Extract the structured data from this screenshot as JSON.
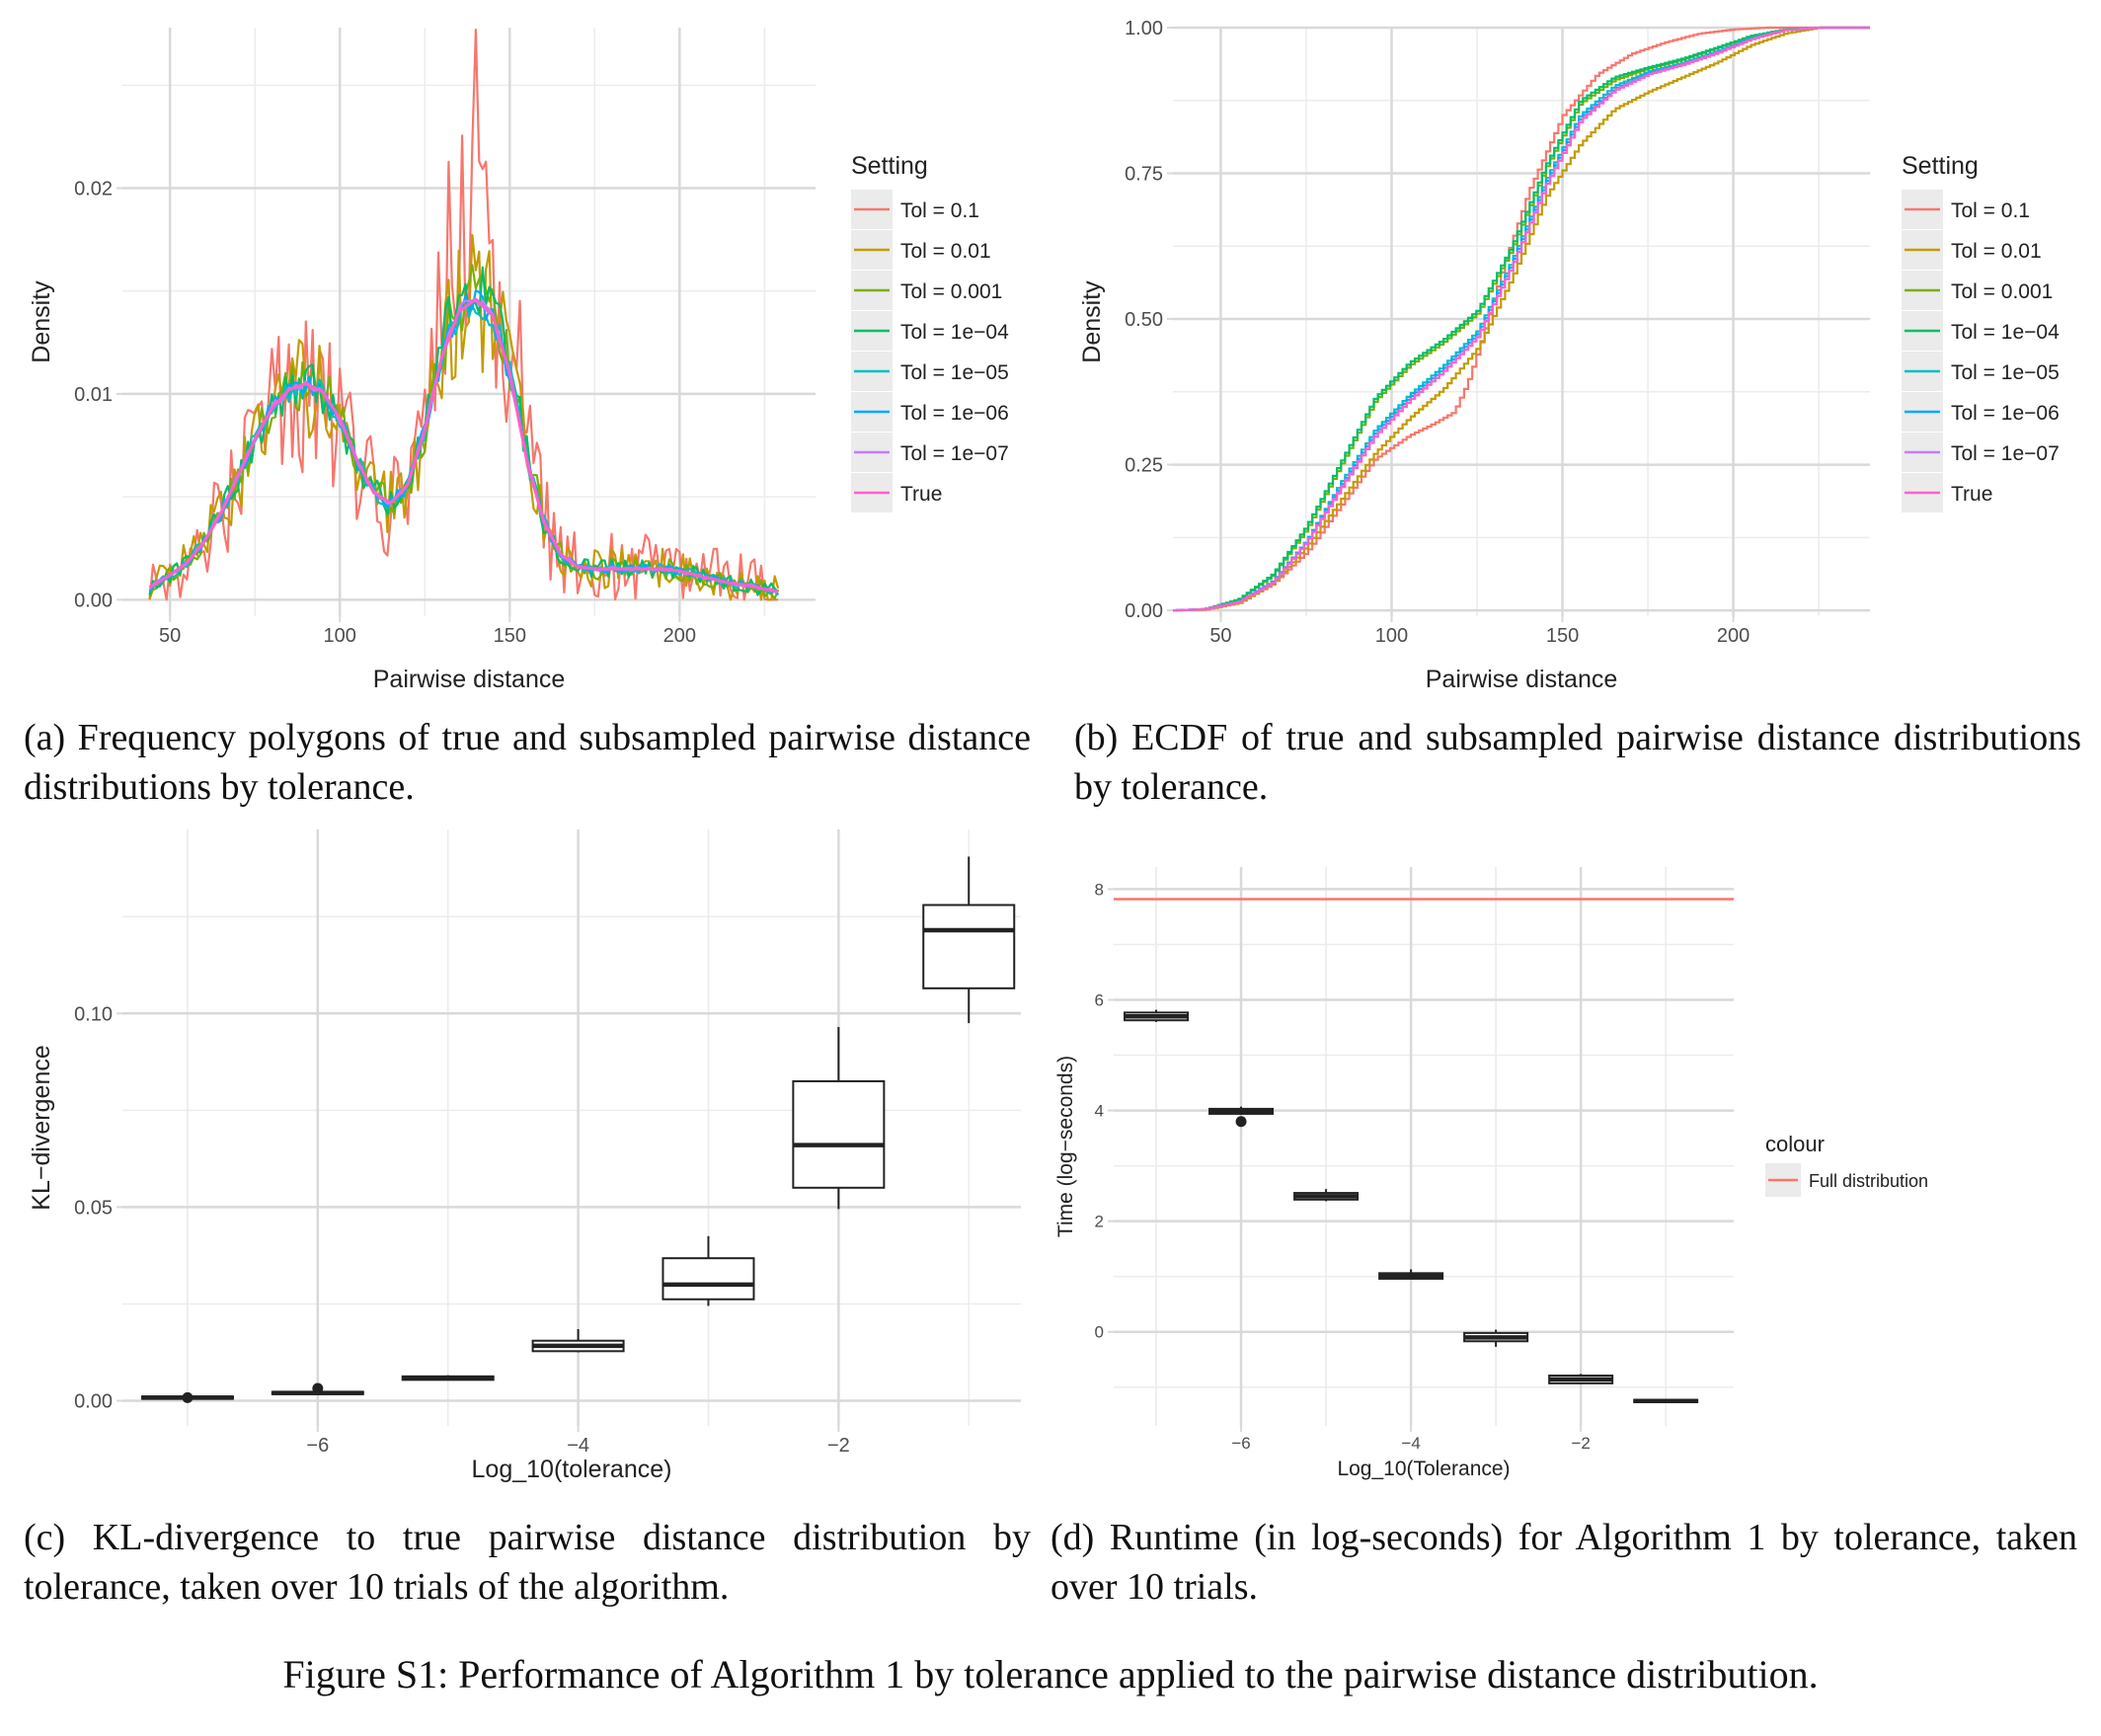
{
  "colors": {
    "panel_bg": "#ffffff",
    "grid_major": "#d9d9d9",
    "grid_minor": "#ececec",
    "legend_key_bg": "#ebebeb",
    "text": "#222222",
    "tick_text": "#4d4d4d",
    "box": "#222222"
  },
  "captions": {
    "a": "(a) Frequency polygons of true and subsampled pairwise distance distributions by tolerance.",
    "b": "(b) ECDF of true and subsampled pairwise distance distributions by tolerance.",
    "c": "(c) KL-divergence to true pairwise distance distribution by tolerance, taken over 10 trials of the algorithm.",
    "d": "(d) Runtime (in log-seconds) for Algorithm 1 by tolerance, taken over 10 trials.",
    "figure": "Figure S1: Performance of Algorithm 1 by tolerance applied to the pairwise distance distribution."
  },
  "chart_data": [
    {
      "id": "a",
      "type": "line",
      "title": "",
      "xlabel": "Pairwise distance",
      "ylabel": "Density",
      "xlim": [
        36,
        240
      ],
      "ylim": [
        -0.0008,
        0.0278
      ],
      "xticks": [
        50,
        100,
        150,
        200
      ],
      "xtick_labels": [
        "50",
        "100",
        "150",
        "200"
      ],
      "yticks": [
        0.0,
        0.01,
        0.02
      ],
      "ytick_labels": [
        "0.00",
        "0.01",
        "0.02"
      ],
      "grid": true,
      "legend_title": "Setting",
      "legend_position": "right",
      "series": [
        {
          "name": "Tol =  0.1",
          "color": "#F8766D",
          "noise": 0.0036,
          "amp": 1.22,
          "seed": 11
        },
        {
          "name": "Tol =  0.01",
          "color": "#C49A00",
          "noise": 0.0021,
          "amp": 1.0,
          "seed": 23
        },
        {
          "name": "Tol =  0.001",
          "color": "#7CAE00",
          "noise": 0.0011,
          "amp": 1.04,
          "seed": 37
        },
        {
          "name": "Tol =  1e−04",
          "color": "#00BE67",
          "noise": 0.0009,
          "amp": 1.06,
          "seed": 41
        },
        {
          "name": "Tol =  1e−05",
          "color": "#00BFC4",
          "noise": 0.0005,
          "amp": 1.0,
          "seed": 53
        },
        {
          "name": "Tol =  1e−06",
          "color": "#00A9FF",
          "noise": 0.0004,
          "amp": 1.0,
          "seed": 67
        },
        {
          "name": "Tol =  1e−07",
          "color": "#C77CFF",
          "noise": 0.0002,
          "amp": 1.0,
          "seed": 71
        },
        {
          "name": "True",
          "color": "#FF61CC",
          "noise": 0.0,
          "amp": 1.0,
          "seed": 0
        }
      ],
      "true_density": {
        "x": [
          44,
          50,
          55,
          60,
          65,
          70,
          75,
          80,
          85,
          90,
          95,
          100,
          105,
          110,
          115,
          120,
          125,
          130,
          135,
          140,
          145,
          150,
          155,
          160,
          165,
          170,
          175,
          180,
          185,
          190,
          195,
          200,
          205,
          210,
          215,
          220,
          225,
          229
        ],
        "y": [
          0.0006,
          0.0012,
          0.0018,
          0.0028,
          0.0042,
          0.006,
          0.0078,
          0.0093,
          0.0102,
          0.0105,
          0.0101,
          0.0088,
          0.0068,
          0.0052,
          0.0047,
          0.0056,
          0.0083,
          0.0118,
          0.014,
          0.0146,
          0.0138,
          0.011,
          0.0068,
          0.0038,
          0.0022,
          0.0016,
          0.0015,
          0.0015,
          0.0015,
          0.0015,
          0.0015,
          0.0014,
          0.0012,
          0.001,
          0.0008,
          0.0007,
          0.0005,
          0.0004
        ]
      },
      "red_spike": {
        "x": 139.5,
        "y": 0.0277
      }
    },
    {
      "id": "b",
      "type": "line",
      "title": "",
      "xlabel": "Pairwise distance",
      "ylabel": "Density",
      "xlim": [
        36,
        240
      ],
      "ylim": [
        -0.01,
        1.0
      ],
      "xticks": [
        50,
        100,
        150,
        200
      ],
      "xtick_labels": [
        "50",
        "100",
        "150",
        "200"
      ],
      "yticks": [
        0.0,
        0.25,
        0.5,
        0.75,
        1.0
      ],
      "ytick_labels": [
        "0.00",
        "0.25",
        "0.50",
        "0.75",
        "1.00"
      ],
      "grid": true,
      "legend_title": "Setting",
      "legend_position": "right",
      "series": [
        {
          "name": "Tol =  0.1",
          "color": "#F8766D",
          "x": [
            36,
            45,
            55,
            65,
            75,
            85,
            95,
            105,
            112,
            118,
            122,
            126,
            132,
            140,
            150,
            160,
            170,
            180,
            190,
            200,
            210,
            220,
            240
          ],
          "y": [
            0,
            0.001,
            0.015,
            0.045,
            0.1,
            0.18,
            0.26,
            0.3,
            0.32,
            0.34,
            0.39,
            0.46,
            0.58,
            0.72,
            0.85,
            0.92,
            0.955,
            0.975,
            0.99,
            0.997,
            1.0,
            1.0,
            1.0
          ]
        },
        {
          "name": "Tol =  0.01",
          "color": "#C49A00",
          "x": [
            36,
            45,
            55,
            65,
            75,
            85,
            95,
            105,
            115,
            125,
            135,
            145,
            155,
            165,
            175,
            185,
            195,
            205,
            215,
            225,
            240
          ],
          "y": [
            0,
            0.001,
            0.012,
            0.045,
            0.11,
            0.19,
            0.27,
            0.33,
            0.38,
            0.45,
            0.57,
            0.71,
            0.8,
            0.86,
            0.89,
            0.915,
            0.94,
            0.97,
            0.99,
            1.0,
            1.0
          ]
        },
        {
          "name": "Tol =  0.001",
          "color": "#7CAE00",
          "x": [
            36,
            45,
            55,
            65,
            75,
            85,
            95,
            105,
            115,
            125,
            135,
            145,
            155,
            165,
            175,
            185,
            195,
            205,
            215,
            225,
            240
          ],
          "y": [
            0,
            0.002,
            0.018,
            0.06,
            0.14,
            0.25,
            0.36,
            0.42,
            0.46,
            0.51,
            0.62,
            0.76,
            0.87,
            0.91,
            0.93,
            0.945,
            0.965,
            0.985,
            0.997,
            1.0,
            1.0
          ]
        },
        {
          "name": "Tol =  1e−04",
          "color": "#00BE67",
          "x": [
            36,
            45,
            55,
            65,
            75,
            85,
            95,
            105,
            115,
            125,
            135,
            145,
            155,
            165,
            175,
            185,
            195,
            205,
            215,
            225,
            240
          ],
          "y": [
            0,
            0.002,
            0.019,
            0.062,
            0.145,
            0.255,
            0.365,
            0.425,
            0.465,
            0.515,
            0.625,
            0.765,
            0.875,
            0.915,
            0.932,
            0.947,
            0.966,
            0.986,
            0.997,
            1.0,
            1.0
          ]
        },
        {
          "name": "Tol =  1e−05",
          "color": "#00BFC4",
          "x": [
            36,
            45,
            55,
            65,
            75,
            85,
            95,
            105,
            115,
            125,
            135,
            145,
            155,
            165,
            175,
            185,
            195,
            205,
            215,
            225,
            240
          ],
          "y": [
            0,
            0.002,
            0.015,
            0.05,
            0.12,
            0.22,
            0.31,
            0.37,
            0.42,
            0.48,
            0.6,
            0.74,
            0.85,
            0.9,
            0.925,
            0.94,
            0.96,
            0.982,
            0.996,
            1.0,
            1.0
          ]
        },
        {
          "name": "Tol =  1e−06",
          "color": "#00A9FF",
          "x": [
            36,
            45,
            55,
            65,
            75,
            85,
            95,
            105,
            115,
            125,
            135,
            145,
            155,
            165,
            175,
            185,
            195,
            205,
            215,
            225,
            240
          ],
          "y": [
            0,
            0.002,
            0.015,
            0.05,
            0.12,
            0.215,
            0.305,
            0.365,
            0.415,
            0.475,
            0.595,
            0.735,
            0.845,
            0.895,
            0.922,
            0.938,
            0.958,
            0.981,
            0.996,
            1.0,
            1.0
          ]
        },
        {
          "name": "Tol =  1e−07",
          "color": "#C77CFF",
          "x": [
            36,
            45,
            55,
            65,
            75,
            85,
            95,
            105,
            115,
            125,
            135,
            145,
            155,
            165,
            175,
            185,
            195,
            205,
            215,
            225,
            240
          ],
          "y": [
            0,
            0.002,
            0.014,
            0.048,
            0.118,
            0.212,
            0.3,
            0.36,
            0.41,
            0.47,
            0.59,
            0.73,
            0.84,
            0.893,
            0.92,
            0.936,
            0.956,
            0.98,
            0.996,
            1.0,
            1.0
          ]
        },
        {
          "name": "True",
          "color": "#FF61CC",
          "x": [
            36,
            45,
            55,
            65,
            75,
            85,
            95,
            105,
            115,
            125,
            135,
            145,
            155,
            165,
            175,
            185,
            195,
            205,
            215,
            225,
            240
          ],
          "y": [
            0,
            0.002,
            0.014,
            0.048,
            0.118,
            0.21,
            0.3,
            0.36,
            0.41,
            0.47,
            0.59,
            0.73,
            0.84,
            0.892,
            0.92,
            0.937,
            0.957,
            0.98,
            0.996,
            1.0,
            1.0
          ]
        }
      ]
    },
    {
      "id": "c",
      "type": "box",
      "title": "",
      "xlabel": "Log_10(tolerance)",
      "ylabel": "KL−divergence",
      "xlim": [
        -7.5,
        -0.6
      ],
      "ylim": [
        -0.0065,
        0.1475
      ],
      "xticks": [
        -6,
        -4,
        -2
      ],
      "xtick_labels": [
        "−6",
        "−4",
        "−2"
      ],
      "yticks": [
        0.0,
        0.05,
        0.1
      ],
      "ytick_labels": [
        "0.00",
        "0.05",
        "0.10"
      ],
      "grid": true,
      "boxes": [
        {
          "x": -7,
          "min": 0.0005,
          "q1": 0.0005,
          "median": 0.0008,
          "q3": 0.0011,
          "max": 0.0012,
          "outliers": [
            0.0008
          ]
        },
        {
          "x": -6,
          "min": 0.0017,
          "q1": 0.0017,
          "median": 0.002,
          "q3": 0.0023,
          "max": 0.0025,
          "outliers": [
            0.0032
          ]
        },
        {
          "x": -5,
          "min": 0.0054,
          "q1": 0.0054,
          "median": 0.0058,
          "q3": 0.0063,
          "max": 0.0066,
          "outliers": []
        },
        {
          "x": -4,
          "min": 0.0125,
          "q1": 0.0128,
          "median": 0.0142,
          "q3": 0.0155,
          "max": 0.0185,
          "outliers": []
        },
        {
          "x": -3,
          "min": 0.0245,
          "q1": 0.0262,
          "median": 0.03,
          "q3": 0.0368,
          "max": 0.0425,
          "outliers": []
        },
        {
          "x": -2,
          "min": 0.0495,
          "q1": 0.055,
          "median": 0.066,
          "q3": 0.0825,
          "max": 0.0965,
          "outliers": []
        },
        {
          "x": -1,
          "min": 0.0975,
          "q1": 0.1065,
          "median": 0.1215,
          "q3": 0.128,
          "max": 0.1405,
          "outliers": []
        }
      ]
    },
    {
      "id": "d",
      "type": "box",
      "title": "",
      "xlabel": "Log_10(Tolerance)",
      "ylabel": "Time (log−seconds)",
      "xlim": [
        -7.5,
        -0.2
      ],
      "ylim": [
        -1.7,
        8.4
      ],
      "xticks": [
        -6,
        -4,
        -2
      ],
      "xtick_labels": [
        "−6",
        "−4",
        "−2"
      ],
      "yticks": [
        0,
        2,
        4,
        6,
        8
      ],
      "ytick_labels": [
        "0",
        "2",
        "4",
        "6",
        "8"
      ],
      "grid": true,
      "legend_title": "colour",
      "legend_position": "right",
      "hline": {
        "name": "Full distribution",
        "y": 7.82,
        "color": "#F8766D"
      },
      "boxes": [
        {
          "x": -7,
          "min": 5.6,
          "q1": 5.63,
          "median": 5.7,
          "q3": 5.77,
          "max": 5.82,
          "outliers": []
        },
        {
          "x": -6,
          "min": 3.92,
          "q1": 3.94,
          "median": 3.98,
          "q3": 4.03,
          "max": 4.07,
          "outliers": [
            3.8
          ]
        },
        {
          "x": -5,
          "min": 2.36,
          "q1": 2.39,
          "median": 2.45,
          "q3": 2.51,
          "max": 2.58,
          "outliers": []
        },
        {
          "x": -4,
          "min": 0.95,
          "q1": 0.96,
          "median": 1.01,
          "q3": 1.06,
          "max": 1.13,
          "outliers": []
        },
        {
          "x": -3,
          "min": -0.27,
          "q1": -0.17,
          "median": -0.1,
          "q3": -0.02,
          "max": 0.04,
          "outliers": []
        },
        {
          "x": -2,
          "min": -0.94,
          "q1": -0.93,
          "median": -0.86,
          "q3": -0.79,
          "max": -0.76,
          "outliers": []
        },
        {
          "x": -1,
          "min": -1.28,
          "q1": -1.27,
          "median": -1.25,
          "q3": -1.23,
          "max": -1.22,
          "outliers": []
        }
      ]
    }
  ]
}
